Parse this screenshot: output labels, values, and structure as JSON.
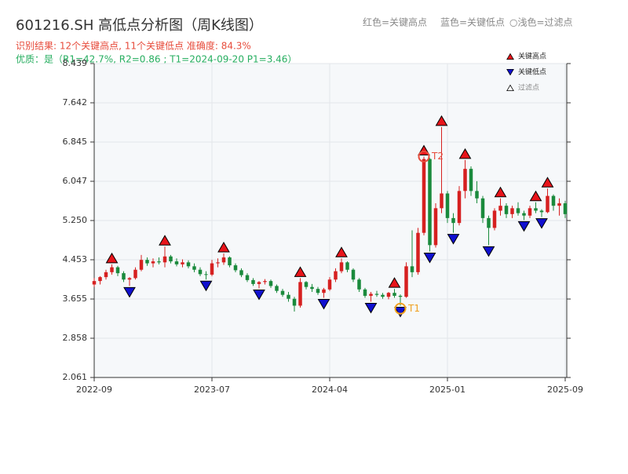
{
  "chart_data": {
    "type": "candlestick",
    "title": "601216.SH 高低点分析图（周K线图）",
    "header_legend": [
      "红色=关键高点",
      "蓝色=关键低点",
      "○浅色=过滤点"
    ],
    "result_line": "识别结果: 12个关键高点, 11个关键低点  准确度: 84.3%",
    "quality_line": "优质：是（R1=42.7%, R2=0.86 ; T1=2024-09-20 P1=3.46）",
    "categories": [
      "2022-09",
      null,
      null,
      null,
      null,
      null,
      null,
      null,
      null,
      null,
      null,
      null,
      null,
      null,
      null,
      null,
      null,
      null,
      null,
      null,
      "2023-07",
      null,
      null,
      null,
      null,
      null,
      null,
      null,
      null,
      null,
      null,
      null,
      null,
      null,
      null,
      null,
      null,
      null,
      null,
      null,
      "2024-04",
      null,
      null,
      null,
      null,
      null,
      null,
      null,
      null,
      null,
      null,
      null,
      null,
      null,
      null,
      null,
      null,
      null,
      null,
      null,
      "2025-01",
      null,
      null,
      null,
      null,
      null,
      null,
      null,
      null,
      null,
      null,
      null,
      null,
      null,
      null,
      null,
      null,
      null,
      null,
      null,
      "2025-09"
    ],
    "ohlc": [
      [
        3.95,
        4.08,
        3.9,
        4.02
      ],
      [
        4.02,
        4.12,
        3.95,
        4.1
      ],
      [
        4.1,
        4.25,
        4.05,
        4.2
      ],
      [
        4.2,
        4.36,
        4.15,
        4.3
      ],
      [
        4.3,
        4.33,
        4.12,
        4.18
      ],
      [
        4.18,
        4.22,
        4.0,
        4.05
      ],
      [
        4.05,
        4.1,
        3.92,
        4.08
      ],
      [
        4.08,
        4.3,
        4.05,
        4.25
      ],
      [
        4.25,
        4.55,
        4.22,
        4.45
      ],
      [
        4.45,
        4.5,
        4.33,
        4.38
      ],
      [
        4.38,
        4.48,
        4.3,
        4.42
      ],
      [
        4.42,
        4.5,
        4.36,
        4.4
      ],
      [
        4.4,
        4.72,
        4.3,
        4.52
      ],
      [
        4.52,
        4.55,
        4.38,
        4.42
      ],
      [
        4.42,
        4.48,
        4.32,
        4.36
      ],
      [
        4.36,
        4.46,
        4.3,
        4.4
      ],
      [
        4.4,
        4.44,
        4.28,
        4.32
      ],
      [
        4.32,
        4.38,
        4.2,
        4.25
      ],
      [
        4.25,
        4.3,
        4.12,
        4.16
      ],
      [
        4.16,
        4.22,
        4.05,
        4.15
      ],
      [
        4.15,
        4.45,
        4.12,
        4.38
      ],
      [
        4.38,
        4.48,
        4.3,
        4.4
      ],
      [
        4.4,
        4.58,
        4.35,
        4.5
      ],
      [
        4.5,
        4.52,
        4.3,
        4.34
      ],
      [
        4.34,
        4.38,
        4.2,
        4.24
      ],
      [
        4.24,
        4.28,
        4.1,
        4.14
      ],
      [
        4.14,
        4.18,
        4.0,
        4.04
      ],
      [
        4.04,
        4.08,
        3.92,
        3.96
      ],
      [
        3.96,
        4.02,
        3.87,
        4.0
      ],
      [
        4.0,
        4.06,
        3.95,
        4.02
      ],
      [
        4.02,
        4.05,
        3.88,
        3.92
      ],
      [
        3.92,
        3.95,
        3.78,
        3.82
      ],
      [
        3.82,
        3.86,
        3.7,
        3.74
      ],
      [
        3.74,
        3.8,
        3.6,
        3.66
      ],
      [
        3.66,
        3.7,
        3.4,
        3.52
      ],
      [
        3.52,
        4.08,
        3.48,
        4.0
      ],
      [
        4.0,
        4.02,
        3.85,
        3.9
      ],
      [
        3.9,
        3.96,
        3.8,
        3.86
      ],
      [
        3.86,
        3.9,
        3.74,
        3.78
      ],
      [
        3.78,
        3.88,
        3.68,
        3.85
      ],
      [
        3.85,
        4.1,
        3.82,
        4.05
      ],
      [
        4.05,
        4.28,
        4.0,
        4.22
      ],
      [
        4.22,
        4.48,
        4.18,
        4.4
      ],
      [
        4.4,
        4.42,
        4.2,
        4.25
      ],
      [
        4.25,
        4.28,
        4.0,
        4.05
      ],
      [
        4.05,
        4.08,
        3.8,
        3.85
      ],
      [
        3.85,
        3.88,
        3.68,
        3.72
      ],
      [
        3.72,
        3.8,
        3.6,
        3.76
      ],
      [
        3.76,
        3.82,
        3.7,
        3.74
      ],
      [
        3.74,
        3.78,
        3.66,
        3.7
      ],
      [
        3.7,
        3.8,
        3.65,
        3.78
      ],
      [
        3.78,
        3.86,
        3.68,
        3.72
      ],
      [
        3.72,
        3.75,
        3.52,
        3.7
      ],
      [
        3.7,
        4.4,
        3.68,
        4.32
      ],
      [
        4.32,
        5.05,
        4.1,
        4.2
      ],
      [
        4.2,
        5.1,
        4.15,
        5.0
      ],
      [
        5.0,
        6.55,
        4.95,
        6.5
      ],
      [
        6.5,
        6.52,
        4.62,
        4.75
      ],
      [
        4.75,
        5.6,
        4.7,
        5.5
      ],
      [
        5.5,
        7.15,
        5.4,
        5.8
      ],
      [
        5.8,
        5.85,
        5.2,
        5.3
      ],
      [
        5.3,
        5.4,
        5.0,
        5.2
      ],
      [
        5.2,
        5.95,
        5.15,
        5.85
      ],
      [
        5.85,
        6.48,
        5.7,
        6.3
      ],
      [
        6.3,
        6.35,
        5.75,
        5.85
      ],
      [
        5.85,
        6.05,
        5.6,
        5.7
      ],
      [
        5.7,
        5.75,
        5.2,
        5.3
      ],
      [
        5.3,
        5.35,
        4.75,
        5.1
      ],
      [
        5.1,
        5.5,
        5.05,
        5.45
      ],
      [
        5.45,
        5.7,
        5.35,
        5.55
      ],
      [
        5.55,
        5.6,
        5.3,
        5.38
      ],
      [
        5.38,
        5.55,
        5.3,
        5.5
      ],
      [
        5.5,
        5.62,
        5.35,
        5.4
      ],
      [
        5.4,
        5.45,
        5.26,
        5.35
      ],
      [
        5.35,
        5.55,
        5.3,
        5.5
      ],
      [
        5.5,
        5.62,
        5.4,
        5.45
      ],
      [
        5.45,
        5.48,
        5.32,
        5.42
      ],
      [
        5.42,
        5.9,
        5.4,
        5.75
      ],
      [
        5.75,
        5.78,
        5.45,
        5.55
      ],
      [
        5.55,
        5.7,
        5.35,
        5.6
      ],
      [
        5.6,
        5.65,
        5.3,
        5.38
      ]
    ],
    "up_color": "#d62020",
    "down_color": "#1a8a3c",
    "points": [
      {
        "name": "关键高点",
        "color": "#e8141a",
        "direction": "up",
        "index": [
          3,
          12,
          22,
          35,
          42,
          51,
          56,
          59,
          63,
          69,
          75,
          77
        ],
        "values": [
          4.36,
          4.72,
          4.58,
          4.08,
          4.48,
          3.86,
          6.55,
          7.15,
          6.48,
          5.7,
          5.62,
          5.9
        ]
      },
      {
        "name": "关键低点",
        "color": "#1010d0",
        "direction": "down",
        "index": [
          6,
          19,
          28,
          39,
          47,
          52,
          57,
          61,
          67,
          73,
          76
        ],
        "values": [
          3.92,
          4.05,
          3.87,
          3.68,
          3.6,
          3.52,
          4.62,
          5.0,
          4.75,
          5.26,
          5.32
        ]
      },
      {
        "name": "过滤点",
        "color": "#ffffff",
        "direction": "up",
        "index": [],
        "values": []
      }
    ],
    "annotations": [
      {
        "label": "T1",
        "index": 52,
        "value": 3.46,
        "color": "#f0a020"
      },
      {
        "label": "T2",
        "index": 56,
        "value": 6.55,
        "color": "#e74c3c"
      }
    ],
    "ylim": [
      2.061,
      8.439
    ],
    "yticks": [
      2.061,
      2.858,
      3.655,
      4.453,
      {
        "value": 5.25,
        "label": "5.250"
      },
      6.047,
      6.845,
      7.642,
      8.439
    ],
    "grid": true
  }
}
